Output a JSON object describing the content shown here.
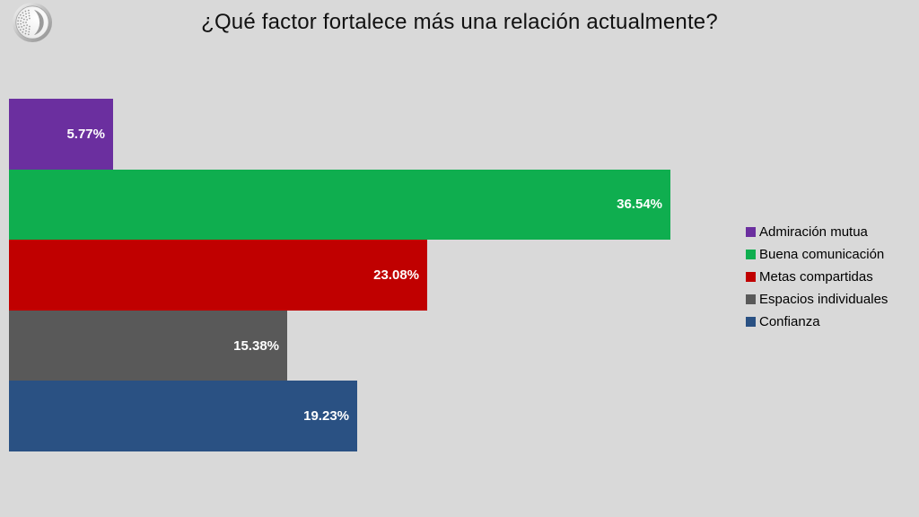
{
  "page": {
    "background_color": "#d9d9d9"
  },
  "header": {
    "title": "¿Qué factor fortalece más una relación actualmente?",
    "logo_icon": "coin-logo-icon"
  },
  "chart_data": {
    "type": "bar",
    "orientation": "horizontal",
    "title": "¿Qué factor fortalece más una relación actualmente?",
    "categories": [
      "Admiración mutua",
      "Buena comunicación",
      "Metas compartidas",
      "Espacios individuales",
      "Confianza"
    ],
    "values": [
      5.77,
      36.54,
      23.08,
      15.38,
      19.23
    ],
    "value_labels": [
      "5.77%",
      "36.54%",
      "23.08%",
      "15.38%",
      "19.23%"
    ],
    "colors": [
      "#6b2f9f",
      "#0fae4f",
      "#c00000",
      "#595959",
      "#2a5183"
    ],
    "value_label_color": "#ffffff",
    "xlabel": "",
    "ylabel": "",
    "xlim": [
      0,
      40
    ],
    "grid": false,
    "axis_visible": false,
    "legend_position": "right"
  }
}
